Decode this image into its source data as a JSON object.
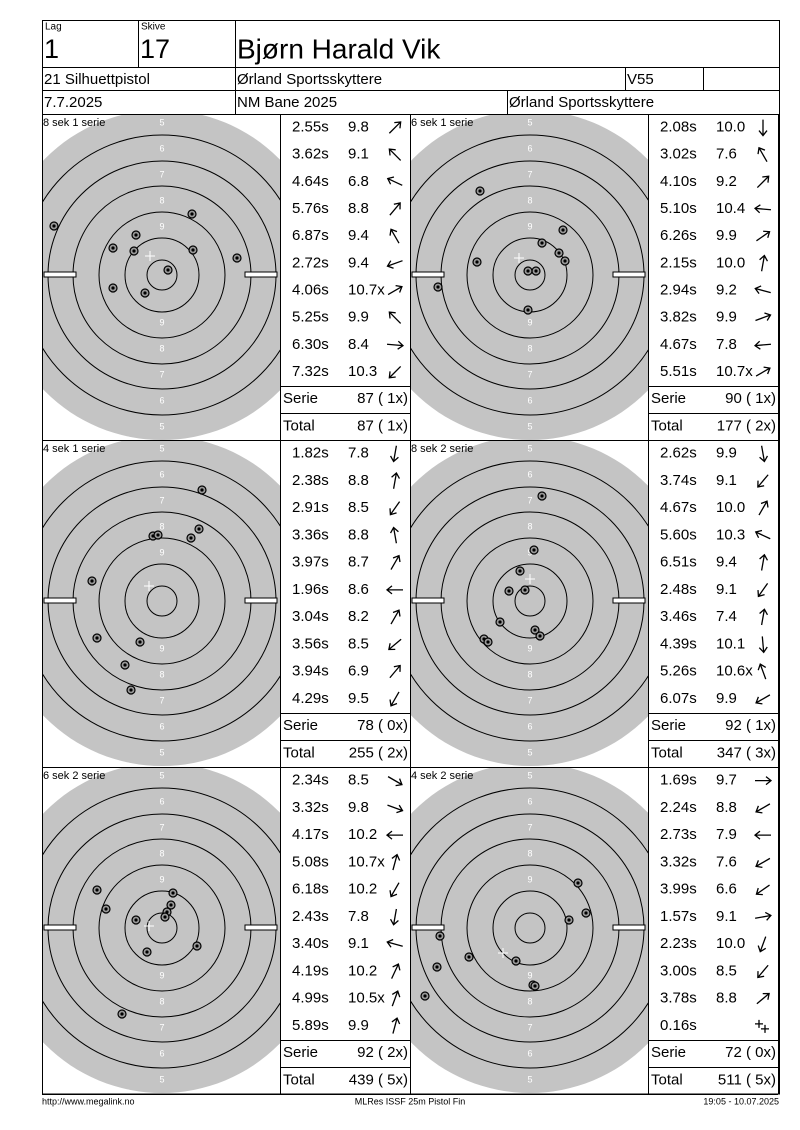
{
  "header": {
    "lag_label": "Lag",
    "lag": "1",
    "skive_label": "Skive",
    "skive": "17",
    "name": "Bjørn Harald Vik",
    "class": "21 Silhuettpistol",
    "club": "Ørland Sportsskyttere",
    "age_class": "V55",
    "date": "7.7.2025",
    "event": "NM Bane 2025",
    "organizer": "Ørland Sportsskyttere"
  },
  "labels": {
    "serie": "Serie",
    "total": "Total"
  },
  "ring_labels": [
    "5",
    "6",
    "7",
    "8",
    "9"
  ],
  "panels": [
    {
      "title": "8 sek 1 serie",
      "shots": [
        {
          "time": "2.55s",
          "score": "9.8"
        },
        {
          "time": "3.62s",
          "score": "9.1"
        },
        {
          "time": "4.64s",
          "score": "6.8"
        },
        {
          "time": "5.76s",
          "score": "8.8"
        },
        {
          "time": "6.87s",
          "score": "9.4"
        },
        {
          "time": "2.72s",
          "score": "9.4"
        },
        {
          "time": "4.06s",
          "score": "10.7x"
        },
        {
          "time": "5.25s",
          "score": "9.9"
        },
        {
          "time": "6.30s",
          "score": "8.4"
        },
        {
          "time": "7.32s",
          "score": "10.3"
        }
      ],
      "serie": "87 ( 1x)",
      "total": "87 ( 1x)"
    },
    {
      "title": "6 sek 1 serie",
      "shots": [
        {
          "time": "2.08s",
          "score": "10.0"
        },
        {
          "time": "3.02s",
          "score": "7.6"
        },
        {
          "time": "4.10s",
          "score": "9.2"
        },
        {
          "time": "5.10s",
          "score": "10.4"
        },
        {
          "time": "6.26s",
          "score": "9.9"
        },
        {
          "time": "2.15s",
          "score": "10.0"
        },
        {
          "time": "2.94s",
          "score": "9.2"
        },
        {
          "time": "3.82s",
          "score": "9.9"
        },
        {
          "time": "4.67s",
          "score": "7.8"
        },
        {
          "time": "5.51s",
          "score": "10.7x"
        }
      ],
      "serie": "90 ( 1x)",
      "total": "177 ( 2x)"
    },
    {
      "title": "4 sek 1 serie",
      "shots": [
        {
          "time": "1.82s",
          "score": "7.8"
        },
        {
          "time": "2.38s",
          "score": "8.8"
        },
        {
          "time": "2.91s",
          "score": "8.5"
        },
        {
          "time": "3.36s",
          "score": "8.8"
        },
        {
          "time": "3.97s",
          "score": "8.7"
        },
        {
          "time": "1.96s",
          "score": "8.6"
        },
        {
          "time": "3.04s",
          "score": "8.2"
        },
        {
          "time": "3.56s",
          "score": "8.5"
        },
        {
          "time": "3.94s",
          "score": "6.9"
        },
        {
          "time": "4.29s",
          "score": "9.5"
        }
      ],
      "serie": "78 ( 0x)",
      "total": "255 ( 2x)"
    },
    {
      "title": "8 sek 2 serie",
      "shots": [
        {
          "time": "2.62s",
          "score": "9.9"
        },
        {
          "time": "3.74s",
          "score": "9.1"
        },
        {
          "time": "4.67s",
          "score": "10.0"
        },
        {
          "time": "5.60s",
          "score": "10.3"
        },
        {
          "time": "6.51s",
          "score": "9.4"
        },
        {
          "time": "2.48s",
          "score": "9.1"
        },
        {
          "time": "3.46s",
          "score": "7.4"
        },
        {
          "time": "4.39s",
          "score": "10.1"
        },
        {
          "time": "5.26s",
          "score": "10.6x"
        },
        {
          "time": "6.07s",
          "score": "9.9"
        }
      ],
      "serie": "92 ( 1x)",
      "total": "347 ( 3x)"
    },
    {
      "title": "6 sek 2 serie",
      "shots": [
        {
          "time": "2.34s",
          "score": "8.5"
        },
        {
          "time": "3.32s",
          "score": "9.8"
        },
        {
          "time": "4.17s",
          "score": "10.2"
        },
        {
          "time": "5.08s",
          "score": "10.7x"
        },
        {
          "time": "6.18s",
          "score": "10.2"
        },
        {
          "time": "2.43s",
          "score": "7.8"
        },
        {
          "time": "3.40s",
          "score": "9.1"
        },
        {
          "time": "4.19s",
          "score": "10.2"
        },
        {
          "time": "4.99s",
          "score": "10.5x"
        },
        {
          "time": "5.89s",
          "score": "9.9"
        }
      ],
      "serie": "92 ( 2x)",
      "total": "439 ( 5x)"
    },
    {
      "title": "4 sek 2 serie",
      "shots": [
        {
          "time": "1.69s",
          "score": "9.7"
        },
        {
          "time": "2.24s",
          "score": "8.8"
        },
        {
          "time": "2.73s",
          "score": "7.9"
        },
        {
          "time": "3.32s",
          "score": "7.6"
        },
        {
          "time": "3.99s",
          "score": "6.6"
        },
        {
          "time": "1.57s",
          "score": "9.1"
        },
        {
          "time": "2.23s",
          "score": "10.0"
        },
        {
          "time": "3.00s",
          "score": "8.5"
        },
        {
          "time": "3.78s",
          "score": "8.8"
        },
        {
          "time": "0.16s"
        }
      ],
      "serie": "72 ( 0x)",
      "total": "511 ( 5x)"
    }
  ],
  "footer": {
    "url": "http://www.megalink.no",
    "program": "MLRes ISSF 25m Pistol Fin",
    "timestamp": "19:05 - 10.07.2025"
  }
}
